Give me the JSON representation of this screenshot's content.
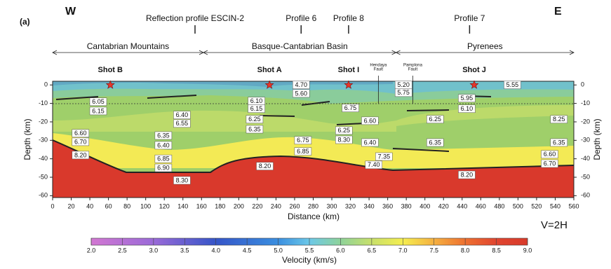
{
  "chart_data": {
    "type": "velocity-section",
    "panel_label": "(a)",
    "west": "W",
    "east": "E",
    "note": "V=2H",
    "xlabel": "Distance (km)",
    "ylabel": "Depth (km)",
    "xlim": [
      0,
      560
    ],
    "xticks": [
      0,
      20,
      40,
      60,
      80,
      100,
      120,
      140,
      160,
      180,
      200,
      220,
      240,
      260,
      280,
      300,
      320,
      340,
      360,
      380,
      400,
      420,
      440,
      460,
      480,
      500,
      520,
      540,
      560
    ],
    "ylim": [
      -61,
      2
    ],
    "yticks": [
      0,
      -10,
      -20,
      -30,
      -40,
      -50,
      -60
    ],
    "profiles": [
      {
        "name": "Reflection profile ESCIN-2",
        "x": 153
      },
      {
        "name": "Profile 6",
        "x": 267
      },
      {
        "name": "Profile 8",
        "x": 318
      },
      {
        "name": "Profile 7",
        "x": 448
      }
    ],
    "regions": [
      {
        "name": "Cantabrian Mountains",
        "from": 0,
        "to": 162
      },
      {
        "name": "Basque-Cantabrian Basin",
        "from": 162,
        "to": 369
      },
      {
        "name": "Pyrenees",
        "from": 369,
        "to": 560
      }
    ],
    "shots": [
      {
        "name": "Shot B",
        "x": 62
      },
      {
        "name": "Shot A",
        "x": 233
      },
      {
        "name": "Shot I",
        "x": 318
      },
      {
        "name": "Shot J",
        "x": 453
      }
    ],
    "faults": [
      {
        "lines": [
          "Hendaya",
          "Fault"
        ],
        "x": 350
      },
      {
        "lines": [
          "Pamplona",
          "Fault"
        ],
        "x": 387
      }
    ],
    "velocity_labels": [
      {
        "text": "4.70",
        "x": 267,
        "depth": 0
      },
      {
        "text": "5.60",
        "x": 267,
        "depth": -4.6
      },
      {
        "text": "5.20",
        "x": 377,
        "depth": 0
      },
      {
        "text": "5.75",
        "x": 377,
        "depth": -4.2
      },
      {
        "text": "5.55",
        "x": 494,
        "depth": 0
      },
      {
        "text": "5.95",
        "x": 445,
        "depth": -7.2
      },
      {
        "text": "6.10",
        "x": 445,
        "depth": -12.9
      },
      {
        "text": "6.05",
        "x": 49,
        "depth": -9.1
      },
      {
        "text": "6.15",
        "x": 49,
        "depth": -14.1
      },
      {
        "text": "6.10",
        "x": 219,
        "depth": -8.7
      },
      {
        "text": "6.15",
        "x": 219,
        "depth": -12.9
      },
      {
        "text": "6.75",
        "x": 320,
        "depth": -12.5
      },
      {
        "text": "6.40",
        "x": 139,
        "depth": -16.3
      },
      {
        "text": "6.55",
        "x": 139,
        "depth": -20.9
      },
      {
        "text": "6.25",
        "x": 217,
        "depth": -18.6
      },
      {
        "text": "6.35",
        "x": 217,
        "depth": -24
      },
      {
        "text": "6.60",
        "x": 341,
        "depth": -19.4
      },
      {
        "text": "6.25",
        "x": 313,
        "depth": -24.7
      },
      {
        "text": "8.30",
        "x": 313,
        "depth": -29.7
      },
      {
        "text": "6.40",
        "x": 341,
        "depth": -31.2
      },
      {
        "text": "6.25",
        "x": 411,
        "depth": -18.6
      },
      {
        "text": "8.25",
        "x": 544,
        "depth": -18.6
      },
      {
        "text": "6.60",
        "x": 30,
        "depth": -26.2
      },
      {
        "text": "6.70",
        "x": 30,
        "depth": -30.8
      },
      {
        "text": "8.20",
        "x": 30,
        "depth": -38
      },
      {
        "text": "6.35",
        "x": 119,
        "depth": -27.4
      },
      {
        "text": "6.40",
        "x": 119,
        "depth": -32.7
      },
      {
        "text": "6.75",
        "x": 269,
        "depth": -30
      },
      {
        "text": "6.85",
        "x": 269,
        "depth": -36
      },
      {
        "text": "6.85",
        "x": 119,
        "depth": -40
      },
      {
        "text": "6.90",
        "x": 119,
        "depth": -44.9
      },
      {
        "text": "8.20",
        "x": 228,
        "depth": -44
      },
      {
        "text": "8.30",
        "x": 139,
        "depth": -51.7
      },
      {
        "text": "7.35",
        "x": 356,
        "depth": -38.8
      },
      {
        "text": "7.40",
        "x": 345,
        "depth": -43.3
      },
      {
        "text": "6.35",
        "x": 411,
        "depth": -31.2
      },
      {
        "text": "6.35",
        "x": 544,
        "depth": -31.2
      },
      {
        "text": "6.60",
        "x": 534,
        "depth": -37.6
      },
      {
        "text": "6.70",
        "x": 534,
        "depth": -42.6
      },
      {
        "text": "8.20",
        "x": 445,
        "depth": -48.7
      }
    ],
    "colorbar": {
      "label": "Velocity (km/s)",
      "lim": [
        2,
        9
      ],
      "ticks": [
        {
          "value": 2,
          "label": "2.0"
        },
        {
          "value": 2.5,
          "label": "2.5"
        },
        {
          "value": 3,
          "label": "3.0"
        },
        {
          "value": 3.5,
          "label": "3.5"
        },
        {
          "value": 4,
          "label": "4.0"
        },
        {
          "value": 4.5,
          "label": "4.5"
        },
        {
          "value": 5,
          "label": "5.0"
        },
        {
          "value": 5.5,
          "label": "5.5"
        },
        {
          "value": 6,
          "label": "6.0"
        },
        {
          "value": 6.5,
          "label": "6.5"
        },
        {
          "value": 7,
          "label": "7.0"
        },
        {
          "value": 7.5,
          "label": "7.5"
        },
        {
          "value": 8,
          "label": "8.0"
        },
        {
          "value": 8.5,
          "label": "8.5"
        },
        {
          "value": 9,
          "label": "9.0"
        }
      ]
    }
  }
}
